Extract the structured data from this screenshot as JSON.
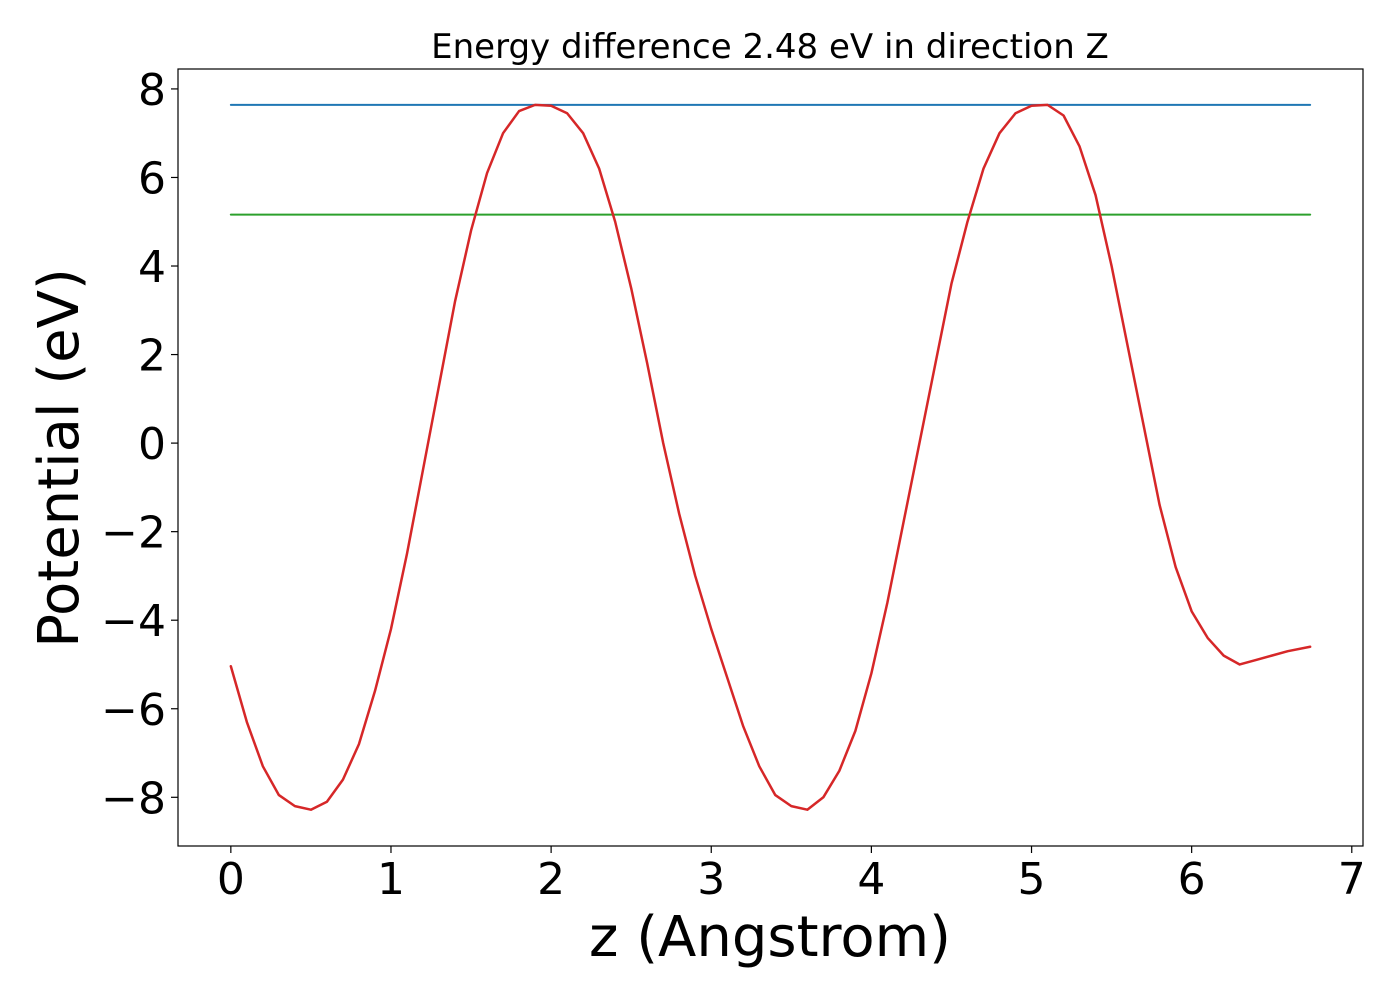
{
  "chart_data": {
    "type": "line",
    "title": "Energy difference 2.48 eV in direction Z",
    "xlabel": "z (Angstrom)",
    "ylabel": "Potential (eV)",
    "xlim": [
      -0.33,
      7.07
    ],
    "ylim": [
      -9.1,
      8.45
    ],
    "x_ticks": [
      0,
      1,
      2,
      3,
      4,
      5,
      6,
      7
    ],
    "x_tick_labels": [
      "0",
      "1",
      "2",
      "3",
      "4",
      "5",
      "6",
      "7"
    ],
    "y_ticks": [
      -8,
      -6,
      -4,
      -2,
      0,
      2,
      4,
      6,
      8
    ],
    "y_tick_labels": [
      "−8",
      "−6",
      "−4",
      "−2",
      "0",
      "2",
      "4",
      "6",
      "8"
    ],
    "grid": false,
    "legend": false,
    "series": [
      {
        "color": "#1f77b4",
        "x": [
          0,
          6.74
        ],
        "y": [
          7.64,
          7.64
        ]
      },
      {
        "color": "#2ca02c",
        "x": [
          0,
          6.74
        ],
        "y": [
          5.16,
          5.16
        ]
      },
      {
        "color": "#d62728",
        "x": [
          0,
          0.1,
          0.2,
          0.3,
          0.4,
          0.5,
          0.6,
          0.7,
          0.8,
          0.9,
          1.0,
          1.1,
          1.2,
          1.3,
          1.4,
          1.5,
          1.6,
          1.7,
          1.8,
          1.9,
          2.0,
          2.1,
          2.2,
          2.3,
          2.4,
          2.5,
          2.6,
          2.7,
          2.8,
          2.9,
          3.0,
          3.1,
          3.2,
          3.3,
          3.4,
          3.5,
          3.6,
          3.7,
          3.8,
          3.9,
          4.0,
          4.1,
          4.2,
          4.3,
          4.4,
          4.5,
          4.6,
          4.7,
          4.8,
          4.9,
          5.0,
          5.1,
          5.2,
          5.3,
          5.4,
          5.5,
          5.6,
          5.7,
          5.8,
          5.9,
          6.0,
          6.1,
          6.2,
          6.3,
          6.4,
          6.5,
          6.6,
          6.74
        ],
        "y": [
          -5.04,
          -6.3,
          -7.3,
          -7.95,
          -8.2,
          -8.28,
          -8.1,
          -7.6,
          -6.8,
          -5.6,
          -4.2,
          -2.5,
          -0.6,
          1.3,
          3.2,
          4.8,
          6.1,
          7.0,
          7.5,
          7.64,
          7.62,
          7.45,
          7.0,
          6.2,
          5.0,
          3.5,
          1.8,
          0.0,
          -1.6,
          -3.0,
          -4.2,
          -5.3,
          -6.4,
          -7.3,
          -7.95,
          -8.2,
          -8.28,
          -8.0,
          -7.4,
          -6.5,
          -5.2,
          -3.6,
          -1.8,
          0.0,
          1.8,
          3.6,
          5.0,
          6.2,
          7.0,
          7.45,
          7.62,
          7.64,
          7.4,
          6.7,
          5.6,
          4.0,
          2.2,
          0.4,
          -1.4,
          -2.8,
          -3.8,
          -4.4,
          -4.8,
          -5.0,
          -4.9,
          -4.8,
          -4.7,
          -4.6
        ]
      }
    ]
  }
}
